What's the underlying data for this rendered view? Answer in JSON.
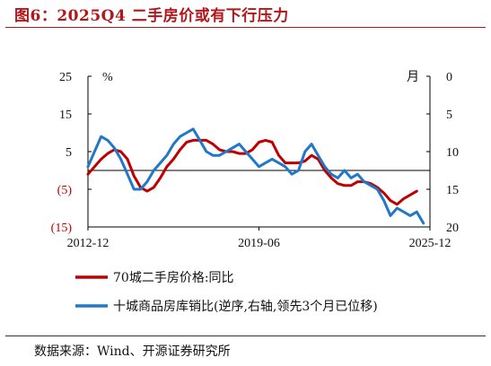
{
  "title": "图6：2025Q4 二手房价或有下行压力",
  "source": "数据来源：Wind、开源证券研究所",
  "colors": {
    "title": "#b3161b",
    "series_red": "#c00000",
    "series_blue": "#1f78c8",
    "neg_tick": "#c00000"
  },
  "chart_data": {
    "type": "line",
    "x_ticks": [
      "2012-12",
      "2019-06",
      "2025-12"
    ],
    "x_range": [
      "2012-12",
      "2025-12"
    ],
    "left_axis": {
      "unit": "%",
      "ticks": [
        "25",
        "15",
        "5",
        "(5)",
        "(15)"
      ],
      "values": [
        25,
        15,
        5,
        -5,
        -15
      ],
      "range": [
        -15,
        25
      ]
    },
    "right_axis": {
      "unit": "月",
      "ticks": [
        "0",
        "5",
        "10",
        "15",
        "20"
      ],
      "values": [
        0,
        5,
        10,
        15,
        20
      ],
      "range": [
        0,
        20
      ],
      "inverted": true
    },
    "zero_line": true,
    "legend": {
      "placement": "bottom"
    },
    "series": [
      {
        "name": "70城二手房价格:同比",
        "axis": "left",
        "color": "#c00000",
        "points": [
          [
            "2012-12",
            -1.0
          ],
          [
            "2013-03",
            1.0
          ],
          [
            "2013-06",
            3.0
          ],
          [
            "2013-09",
            4.5
          ],
          [
            "2013-12",
            5.5
          ],
          [
            "2014-03",
            5.0
          ],
          [
            "2014-06",
            3.0
          ],
          [
            "2014-09",
            -1.5
          ],
          [
            "2014-12",
            -4.5
          ],
          [
            "2015-03",
            -5.5
          ],
          [
            "2015-06",
            -4.5
          ],
          [
            "2015-09",
            -2.0
          ],
          [
            "2015-12",
            1.0
          ],
          [
            "2016-03",
            3.0
          ],
          [
            "2016-06",
            5.5
          ],
          [
            "2016-09",
            7.5
          ],
          [
            "2016-12",
            8.0
          ],
          [
            "2017-03",
            8.0
          ],
          [
            "2017-06",
            8.0
          ],
          [
            "2017-09",
            7.0
          ],
          [
            "2017-12",
            5.5
          ],
          [
            "2018-03",
            5.0
          ],
          [
            "2018-06",
            5.0
          ],
          [
            "2018-09",
            4.5
          ],
          [
            "2018-12",
            4.5
          ],
          [
            "2019-03",
            5.5
          ],
          [
            "2019-06",
            7.5
          ],
          [
            "2019-09",
            8.0
          ],
          [
            "2019-12",
            7.5
          ],
          [
            "2020-03",
            4.0
          ],
          [
            "2020-06",
            2.0
          ],
          [
            "2020-09",
            2.0
          ],
          [
            "2020-12",
            2.0
          ],
          [
            "2021-03",
            2.5
          ],
          [
            "2021-06",
            4.0
          ],
          [
            "2021-09",
            3.0
          ],
          [
            "2021-12",
            0.0
          ],
          [
            "2022-03",
            -2.0
          ],
          [
            "2022-06",
            -3.5
          ],
          [
            "2022-09",
            -4.0
          ],
          [
            "2022-12",
            -4.0
          ],
          [
            "2023-03",
            -3.0
          ],
          [
            "2023-06",
            -3.0
          ],
          [
            "2023-09",
            -3.5
          ],
          [
            "2023-12",
            -4.5
          ],
          [
            "2024-03",
            -6.0
          ],
          [
            "2024-06",
            -8.0
          ],
          [
            "2024-09",
            -9.0
          ],
          [
            "2024-12",
            -7.5
          ],
          [
            "2025-03",
            -6.5
          ],
          [
            "2025-06",
            -5.5
          ]
        ]
      },
      {
        "name": "十城商品房库销比(逆序,右轴,领先3个月已位移)",
        "axis": "right",
        "color": "#1f78c8",
        "points": [
          [
            "2012-12",
            12.0
          ],
          [
            "2013-03",
            10.0
          ],
          [
            "2013-06",
            8.0
          ],
          [
            "2013-09",
            8.5
          ],
          [
            "2013-12",
            9.5
          ],
          [
            "2014-03",
            11.0
          ],
          [
            "2014-06",
            13.0
          ],
          [
            "2014-09",
            15.0
          ],
          [
            "2014-12",
            15.0
          ],
          [
            "2015-03",
            14.0
          ],
          [
            "2015-06",
            12.5
          ],
          [
            "2015-09",
            11.5
          ],
          [
            "2015-12",
            10.5
          ],
          [
            "2016-03",
            9.0
          ],
          [
            "2016-06",
            8.0
          ],
          [
            "2016-09",
            7.5
          ],
          [
            "2016-12",
            7.0
          ],
          [
            "2017-03",
            8.5
          ],
          [
            "2017-06",
            10.0
          ],
          [
            "2017-09",
            10.5
          ],
          [
            "2017-12",
            10.5
          ],
          [
            "2018-03",
            10.0
          ],
          [
            "2018-06",
            9.5
          ],
          [
            "2018-09",
            9.0
          ],
          [
            "2018-12",
            10.0
          ],
          [
            "2019-03",
            11.0
          ],
          [
            "2019-06",
            12.0
          ],
          [
            "2019-09",
            11.5
          ],
          [
            "2019-12",
            11.0
          ],
          [
            "2020-03",
            11.5
          ],
          [
            "2020-06",
            12.0
          ],
          [
            "2020-09",
            13.0
          ],
          [
            "2020-12",
            12.5
          ],
          [
            "2021-03",
            10.0
          ],
          [
            "2021-06",
            9.0
          ],
          [
            "2021-09",
            10.5
          ],
          [
            "2021-12",
            12.0
          ],
          [
            "2022-03",
            13.0
          ],
          [
            "2022-06",
            13.5
          ],
          [
            "2022-09",
            12.5
          ],
          [
            "2022-12",
            13.5
          ],
          [
            "2023-03",
            13.0
          ],
          [
            "2023-06",
            14.0
          ],
          [
            "2023-09",
            14.5
          ],
          [
            "2023-12",
            15.0
          ],
          [
            "2024-03",
            16.5
          ],
          [
            "2024-06",
            18.5
          ],
          [
            "2024-09",
            17.5
          ],
          [
            "2024-12",
            18.0
          ],
          [
            "2025-03",
            18.5
          ],
          [
            "2025-06",
            18.0
          ],
          [
            "2025-09",
            19.5
          ]
        ]
      }
    ]
  }
}
